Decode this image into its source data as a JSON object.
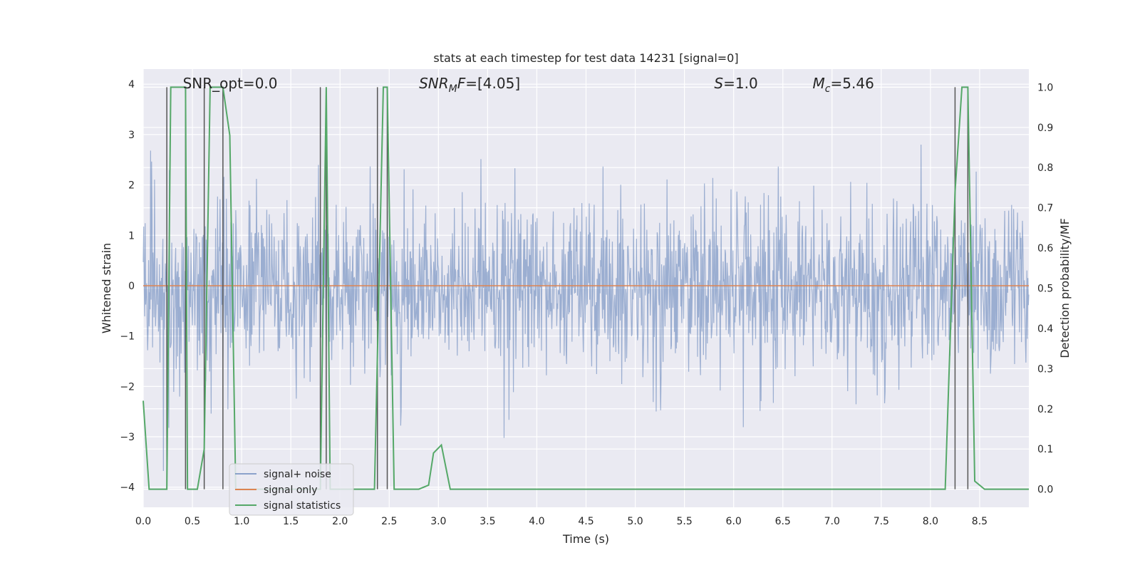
{
  "chart_data": {
    "type": "line",
    "title": "stats at each timestep for test data 14231 [signal=0]",
    "xlabel": "Time (s)",
    "ylabel": "Whitened strain",
    "y2label": "Detection probability/MF",
    "xlim": [
      0.0,
      9.0
    ],
    "ylim": [
      -4.4,
      4.3
    ],
    "y2lim": [
      -0.045,
      1.045
    ],
    "xticks": [
      "0.0",
      "0.5",
      "1.0",
      "1.5",
      "2.0",
      "2.5",
      "3.0",
      "3.5",
      "4.0",
      "4.5",
      "5.0",
      "5.5",
      "6.0",
      "6.5",
      "7.0",
      "7.5",
      "8.0",
      "8.5"
    ],
    "xtick_values": [
      0.0,
      0.5,
      1.0,
      1.5,
      2.0,
      2.5,
      3.0,
      3.5,
      4.0,
      4.5,
      5.0,
      5.5,
      6.0,
      6.5,
      7.0,
      7.5,
      8.0,
      8.5
    ],
    "yticks": [
      "−4",
      "−3",
      "−2",
      "−1",
      "0",
      "1",
      "2",
      "3",
      "4"
    ],
    "ytick_values": [
      -4,
      -3,
      -2,
      -1,
      0,
      1,
      2,
      3,
      4
    ],
    "y2ticks": [
      "0.0",
      "0.1",
      "0.2",
      "0.3",
      "0.4",
      "0.5",
      "0.6",
      "0.7",
      "0.8",
      "0.9",
      "1.0"
    ],
    "y2tick_values": [
      0.0,
      0.1,
      0.2,
      0.3,
      0.4,
      0.5,
      0.6,
      0.7,
      0.8,
      0.9,
      1.0
    ],
    "annotations": [
      {
        "text": "SNR_opt=0.0",
        "x": 0.2
      },
      {
        "text": "SNR_MF=[4.05]",
        "x": 2.6,
        "math": true,
        "base": "SNR",
        "sub": "M",
        "rest": "F=[4.05]"
      },
      {
        "text": "S=1.0",
        "x": 5.6,
        "math": true,
        "base": "S",
        "sub": "",
        "rest": "=1.0"
      },
      {
        "text": "M_c=5.46",
        "x": 6.6,
        "math": true,
        "base": "M",
        "sub": "c",
        "rest": "=5.46"
      }
    ],
    "vlines": [
      0.24,
      0.43,
      0.62,
      0.81,
      1.8,
      1.86,
      2.38,
      2.48,
      8.25,
      8.38
    ],
    "series": [
      {
        "name": "signal+ noise",
        "color": "#4c72b0",
        "kind": "noise",
        "description": "whitened strain noise, approx. normal with std ~1",
        "amplitude_std": 1.0,
        "n_samples": 1800
      },
      {
        "name": "signal only",
        "color": "#dd8452",
        "x": [
          0.0,
          9.0
        ],
        "y": [
          0.0,
          0.0
        ]
      },
      {
        "name": "signal statistics",
        "color": "#55a868",
        "axis": "right",
        "x": [
          0.0,
          0.06,
          0.18,
          0.24,
          0.28,
          0.3,
          0.4,
          0.43,
          0.45,
          0.55,
          0.62,
          0.68,
          0.74,
          0.81,
          0.88,
          0.94,
          1.0,
          1.1,
          1.2,
          1.3,
          1.4,
          1.5,
          1.6,
          1.7,
          1.8,
          1.86,
          1.9,
          1.96,
          2.0,
          2.1,
          2.2,
          2.3,
          2.35,
          2.44,
          2.48,
          2.55,
          2.6,
          2.7,
          2.8,
          2.9,
          2.95,
          3.03,
          3.12,
          3.2,
          4.0,
          5.0,
          6.0,
          7.0,
          8.0,
          8.15,
          8.25,
          8.32,
          8.38,
          8.45,
          8.55,
          8.7,
          9.0
        ],
        "y": [
          0.22,
          0.0,
          0.0,
          0.0,
          1.0,
          1.0,
          1.0,
          1.0,
          0.0,
          0.0,
          0.1,
          1.0,
          1.0,
          1.0,
          0.88,
          0.0,
          0.0,
          0.0,
          0.0,
          0.0,
          0.0,
          0.0,
          0.0,
          0.0,
          0.0,
          1.0,
          0.0,
          0.0,
          0.0,
          0.0,
          0.0,
          0.0,
          0.0,
          1.0,
          1.0,
          0.0,
          0.0,
          0.0,
          0.0,
          0.01,
          0.09,
          0.11,
          0.0,
          0.0,
          0.0,
          0.0,
          0.0,
          0.0,
          0.0,
          0.0,
          0.74,
          1.0,
          1.0,
          0.02,
          0.0,
          0.0,
          0.0
        ]
      }
    ],
    "legend": {
      "placement": "lower-left",
      "entries": [
        "signal+ noise",
        "signal only",
        "signal statistics"
      ]
    },
    "grid": true,
    "style": "seaborn-darkgrid"
  },
  "colors": {
    "plot_bg": "#eaeaf2",
    "grid": "#ffffff",
    "noise": "#4c72b0",
    "signal": "#dd8452",
    "stats": "#55a868",
    "vline": "#555555"
  }
}
